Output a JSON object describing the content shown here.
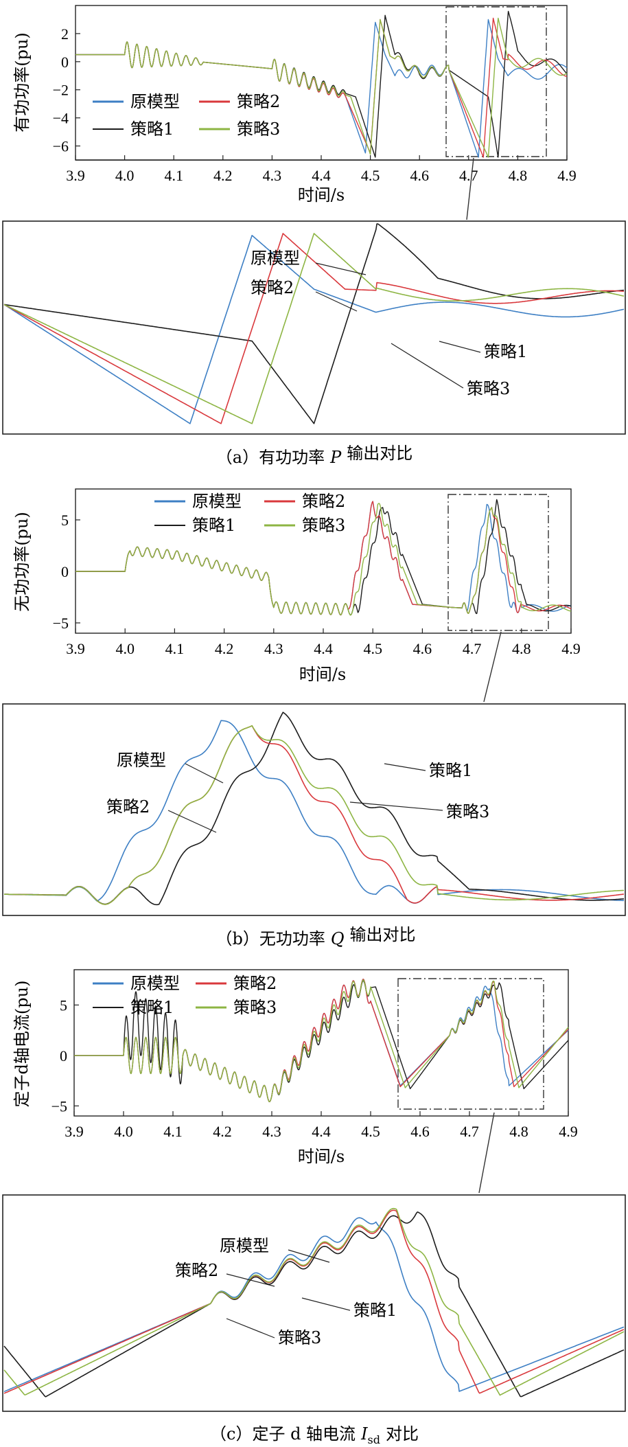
{
  "legend_names": {
    "orig": "原模型",
    "s1": "策略1",
    "s2": "策略2",
    "s3": "策略3"
  },
  "colors": {
    "orig": "#3d7fc4",
    "s1": "#1c1c1c",
    "s2": "#d9383c",
    "s3": "#8db543"
  },
  "panels": [
    {
      "caption_prefix": "（a）有功功率",
      "caption_var": "P",
      "caption_sub": "",
      "caption_suffix": "输出对比",
      "ylabel": "有功功率(pu)",
      "xlabel": "时间/s",
      "xticks": [
        "3.9",
        "4.0",
        "4.1",
        "4.2",
        "4.3",
        "4.4",
        "4.5",
        "4.6",
        "4.7",
        "4.8",
        "4.9"
      ],
      "yticks": [
        "2",
        "0",
        "−2",
        "−4",
        "−6"
      ],
      "zoom_labels": {
        "orig": "原模型",
        "s2": "策略2",
        "s1": "策略1",
        "s3": "策略3"
      }
    },
    {
      "caption_prefix": "（b）无功功率",
      "caption_var": "Q",
      "caption_sub": "",
      "caption_suffix": "输出对比",
      "ylabel": "无功功率(pu)",
      "xlabel": "时间/s",
      "xticks": [
        "3.9",
        "4.0",
        "4.1",
        "4.2",
        "4.3",
        "4.4",
        "4.5",
        "4.6",
        "4.7",
        "4.8",
        "4.9"
      ],
      "yticks": [
        "5",
        "0",
        "−5"
      ],
      "zoom_labels": {
        "orig": "原模型",
        "s2": "策略2",
        "s1": "策略1",
        "s3": "策略3"
      }
    },
    {
      "caption_prefix": "（c）定子 d 轴电流",
      "caption_var": "I",
      "caption_sub": "sd",
      "caption_suffix": "对比",
      "ylabel": "定子d轴电流(pu)",
      "xlabel": "时间/s",
      "xticks": [
        "3.9",
        "4.0",
        "4.1",
        "4.2",
        "4.3",
        "4.4",
        "4.5",
        "4.6",
        "4.7",
        "4.8",
        "4.9"
      ],
      "yticks": [
        "5",
        "0",
        "−5"
      ],
      "zoom_labels": {
        "orig": "原模型",
        "s2": "策略2",
        "s1": "策略1",
        "s3": "策略3"
      }
    }
  ],
  "chart_data": [
    {
      "type": "line",
      "xlabel": "时间/s",
      "ylabel": "有功功率(pu)",
      "xlim": [
        3.9,
        4.9
      ],
      "ylim": [
        -7,
        4
      ],
      "zoom_window": [
        4.66,
        4.86
      ],
      "series": [
        {
          "name": "原模型",
          "x": [
            3.9,
            4.0,
            4.3,
            4.45,
            4.49,
            4.51,
            4.53,
            4.55,
            4.6,
            4.66,
            4.72,
            4.74,
            4.76,
            4.78,
            4.9
          ],
          "y": [
            0.5,
            0.5,
            -0.5,
            -2.5,
            -6.5,
            2.8,
            0.5,
            -1.0,
            -0.6,
            -0.6,
            -6.8,
            3.0,
            0.2,
            -1.0,
            -0.6
          ]
        },
        {
          "name": "策略1",
          "x": [
            3.9,
            4.0,
            4.3,
            4.47,
            4.51,
            4.53,
            4.55,
            4.6,
            4.66,
            4.74,
            4.76,
            4.78,
            4.8,
            4.9
          ],
          "y": [
            0.5,
            0.5,
            -0.5,
            -2.5,
            -6.8,
            3.3,
            0.5,
            -0.9,
            -0.6,
            -2.5,
            -6.8,
            3.3,
            0.5,
            -0.6
          ]
        },
        {
          "name": "策略2",
          "x": [
            3.9,
            4.0,
            4.3,
            4.45,
            4.5,
            4.52,
            4.54,
            4.6,
            4.66,
            4.73,
            4.75,
            4.77,
            4.9
          ],
          "y": [
            0.5,
            0.5,
            -0.5,
            -2.5,
            -6.5,
            3.0,
            0.4,
            -0.8,
            -0.6,
            -6.8,
            3.1,
            0.2,
            -0.6
          ]
        },
        {
          "name": "策略3",
          "x": [
            3.9,
            4.0,
            4.3,
            4.46,
            4.5,
            4.52,
            4.54,
            4.6,
            4.66,
            4.74,
            4.76,
            4.78,
            4.9
          ],
          "y": [
            0.5,
            0.5,
            -0.5,
            -2.5,
            -6.6,
            3.0,
            0.4,
            -0.8,
            -0.6,
            -6.8,
            3.1,
            0.2,
            -0.6
          ]
        }
      ]
    },
    {
      "type": "line",
      "xlabel": "时间/s",
      "ylabel": "无功功率(pu)",
      "xlim": [
        3.9,
        4.9
      ],
      "ylim": [
        -6,
        8
      ],
      "zoom_window": [
        4.66,
        4.86
      ],
      "series": [
        {
          "name": "原模型",
          "x": [
            3.9,
            4.0,
            4.01,
            4.1,
            4.29,
            4.3,
            4.45,
            4.5,
            4.58,
            4.66,
            4.69,
            4.73,
            4.78,
            4.9
          ],
          "y": [
            0,
            0,
            2.0,
            1.6,
            -0.6,
            -3.5,
            -3.7,
            6.5,
            -3.2,
            -3.5,
            -3.6,
            6.5,
            -3.5,
            -3.6
          ]
        },
        {
          "name": "策略1",
          "x": [
            3.9,
            4.0,
            4.01,
            4.1,
            4.29,
            4.3,
            4.47,
            4.52,
            4.6,
            4.66,
            4.71,
            4.75,
            4.81,
            4.9
          ],
          "y": [
            0,
            0,
            2.0,
            1.6,
            -0.6,
            -3.5,
            -3.7,
            6.5,
            -3.2,
            -3.5,
            -3.6,
            6.5,
            -3.5,
            -3.6
          ]
        },
        {
          "name": "策略2",
          "x": [
            3.9,
            4.0,
            4.01,
            4.1,
            4.29,
            4.3,
            4.45,
            4.5,
            4.58,
            4.66,
            4.7,
            4.74,
            4.79,
            4.9
          ],
          "y": [
            0,
            0,
            2.0,
            1.6,
            -0.6,
            -3.5,
            -3.7,
            6.5,
            -3.2,
            -3.5,
            -3.6,
            6.5,
            -3.5,
            -3.6
          ]
        },
        {
          "name": "策略3",
          "x": [
            3.9,
            4.0,
            4.01,
            4.1,
            4.29,
            4.3,
            4.46,
            4.51,
            4.59,
            4.66,
            4.7,
            4.74,
            4.8,
            4.9
          ],
          "y": [
            0,
            0,
            2.0,
            1.6,
            -0.6,
            -3.5,
            -3.7,
            6.5,
            -3.2,
            -3.5,
            -3.6,
            6.5,
            -3.5,
            -3.6
          ]
        }
      ]
    },
    {
      "type": "line",
      "xlabel": "时间/s",
      "ylabel": "定子d轴电流(pu)",
      "xlim": [
        3.9,
        4.9
      ],
      "ylim": [
        -6,
        8.5
      ],
      "zoom_window": [
        4.56,
        4.86
      ],
      "series": [
        {
          "name": "原模型",
          "x": [
            3.9,
            4.0,
            4.12,
            4.3,
            4.45,
            4.49,
            4.56,
            4.66,
            4.74,
            4.78,
            4.9
          ],
          "y": [
            0,
            0,
            0,
            -4.0,
            6.5,
            6.8,
            -3.0,
            2.0,
            7.0,
            -3.0,
            2.5
          ]
        },
        {
          "name": "策略1",
          "x": [
            3.9,
            4.0,
            4.02,
            4.12,
            4.3,
            4.47,
            4.51,
            4.58,
            4.66,
            4.76,
            4.81,
            4.9
          ],
          "y": [
            0,
            0,
            3.5,
            0,
            -4.0,
            6.5,
            6.8,
            -3.3,
            2.0,
            7.2,
            -3.3,
            1.5
          ]
        },
        {
          "name": "策略2",
          "x": [
            3.9,
            4.0,
            4.12,
            4.3,
            4.45,
            4.49,
            4.56,
            4.66,
            4.75,
            4.79,
            4.9
          ],
          "y": [
            0,
            0,
            0,
            -4.0,
            6.5,
            6.8,
            -3.1,
            2.0,
            7.0,
            -3.1,
            2.6
          ]
        },
        {
          "name": "策略3",
          "x": [
            3.9,
            4.0,
            4.12,
            4.3,
            4.46,
            4.5,
            4.57,
            4.66,
            4.75,
            4.8,
            4.9
          ],
          "y": [
            0,
            0,
            0,
            -4.0,
            6.5,
            6.8,
            -3.2,
            2.0,
            7.1,
            -3.2,
            2.8
          ]
        }
      ]
    }
  ]
}
